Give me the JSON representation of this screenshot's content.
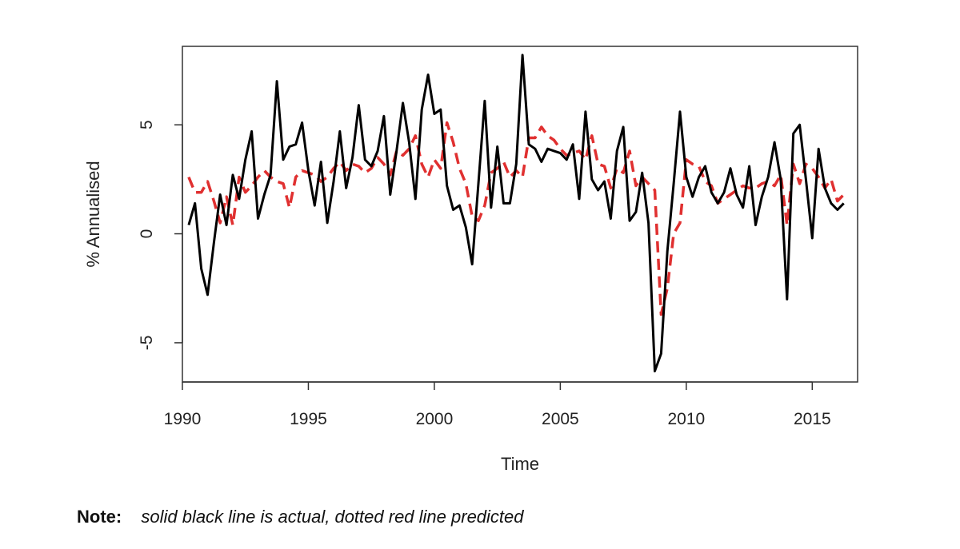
{
  "chart_data": {
    "type": "line",
    "title": "",
    "xlabel": "Time",
    "ylabel": "% Annualised",
    "xlim": [
      1990,
      2016.8
    ],
    "ylim": [
      -6.8,
      8.6
    ],
    "xticks": [
      1990,
      1995,
      2000,
      2005,
      2010,
      2015
    ],
    "yticks": [
      -5,
      0,
      5
    ],
    "grid": false,
    "series": [
      {
        "color": "#000000",
        "style": "solid",
        "x": [
          1990.25,
          1990.5,
          1990.75,
          1991,
          1991.25,
          1991.5,
          1991.75,
          1992,
          1992.25,
          1992.5,
          1992.75,
          1993,
          1993.25,
          1993.5,
          1993.75,
          1994,
          1994.25,
          1994.5,
          1994.75,
          1995,
          1995.25,
          1995.5,
          1995.75,
          1996,
          1996.25,
          1996.5,
          1996.75,
          1997,
          1997.25,
          1997.5,
          1997.75,
          1998,
          1998.25,
          1998.5,
          1998.75,
          1999,
          1999.25,
          1999.5,
          1999.75,
          2000,
          2000.25,
          2000.5,
          2000.75,
          2001,
          2001.25,
          2001.5,
          2001.75,
          2002,
          2002.25,
          2002.5,
          2002.75,
          2003,
          2003.25,
          2003.5,
          2003.75,
          2004,
          2004.25,
          2004.5,
          2004.75,
          2005,
          2005.25,
          2005.5,
          2005.75,
          2006,
          2006.25,
          2006.5,
          2006.75,
          2007,
          2007.25,
          2007.5,
          2007.75,
          2008,
          2008.25,
          2008.5,
          2008.75,
          2009,
          2009.25,
          2009.5,
          2009.75,
          2010,
          2010.25,
          2010.5,
          2010.75,
          2011,
          2011.25,
          2011.5,
          2011.75,
          2012,
          2012.25,
          2012.5,
          2012.75,
          2013,
          2013.25,
          2013.5,
          2013.75,
          2014,
          2014.25,
          2014.5,
          2014.75,
          2015,
          2015.25,
          2015.5,
          2015.75,
          2016,
          2016.25
        ],
        "values": [
          0.4,
          1.4,
          -1.6,
          -2.8,
          -0.4,
          1.8,
          0.4,
          2.7,
          1.6,
          3.4,
          4.7,
          0.7,
          1.8,
          2.7,
          7.0,
          3.4,
          4.0,
          4.1,
          5.1,
          2.9,
          1.3,
          3.3,
          0.5,
          2.4,
          4.7,
          2.1,
          3.5,
          5.9,
          3.4,
          3.1,
          3.8,
          5.4,
          1.8,
          3.8,
          6.0,
          4.2,
          1.6,
          5.7,
          7.3,
          5.5,
          5.7,
          2.2,
          1.1,
          1.3,
          0.3,
          -1.4,
          2.3,
          6.1,
          1.2,
          4.0,
          1.4,
          1.4,
          3.2,
          8.2,
          4.1,
          3.9,
          3.3,
          3.9,
          3.8,
          3.7,
          3.4,
          4.1,
          1.6,
          5.6,
          2.5,
          2.0,
          2.4,
          0.7,
          3.8,
          4.9,
          0.6,
          1.0,
          2.8,
          0.5,
          -6.3,
          -5.5,
          -0.8,
          2.3,
          5.6,
          2.6,
          1.7,
          2.6,
          3.1,
          1.9,
          1.4,
          1.9,
          3.0,
          1.8,
          1.2,
          3.1,
          0.4,
          1.7,
          2.6,
          4.2,
          2.5,
          -3.0,
          4.6,
          5.0,
          2.5,
          -0.2,
          3.9,
          2.1,
          1.4,
          1.1,
          1.4
        ]
      },
      {
        "color": "#e03030",
        "style": "dashed",
        "x": [
          1990.25,
          1990.5,
          1990.75,
          1991,
          1991.25,
          1991.5,
          1991.75,
          1992,
          1992.25,
          1992.5,
          1992.75,
          1993,
          1993.25,
          1993.5,
          1993.75,
          1994,
          1994.25,
          1994.5,
          1994.75,
          1995,
          1995.25,
          1995.5,
          1995.75,
          1996,
          1996.25,
          1996.5,
          1996.75,
          1997,
          1997.25,
          1997.5,
          1997.75,
          1998,
          1998.25,
          1998.5,
          1998.75,
          1999,
          1999.25,
          1999.5,
          1999.75,
          2000,
          2000.25,
          2000.5,
          2000.75,
          2001,
          2001.25,
          2001.5,
          2001.75,
          2002,
          2002.25,
          2002.5,
          2002.75,
          2003,
          2003.25,
          2003.5,
          2003.75,
          2004,
          2004.25,
          2004.5,
          2004.75,
          2005,
          2005.25,
          2005.5,
          2005.75,
          2006,
          2006.25,
          2006.5,
          2006.75,
          2007,
          2007.25,
          2007.5,
          2007.75,
          2008,
          2008.25,
          2008.5,
          2008.75,
          2009,
          2009.25,
          2009.5,
          2009.75,
          2010,
          2010.25,
          2010.5,
          2010.75,
          2011,
          2011.25,
          2011.5,
          2011.75,
          2012,
          2012.25,
          2012.5,
          2012.75,
          2013,
          2013.25,
          2013.5,
          2013.75,
          2014,
          2014.25,
          2014.5,
          2014.75,
          2015,
          2015.25,
          2015.5,
          2015.75,
          2016,
          2016.25
        ],
        "values": [
          2.6,
          1.9,
          1.9,
          2.4,
          1.5,
          0.5,
          1.7,
          0.4,
          2.6,
          1.9,
          2.2,
          2.6,
          2.9,
          2.6,
          2.4,
          2.3,
          1.2,
          2.6,
          2.9,
          2.8,
          2.7,
          2.4,
          2.6,
          3.0,
          3.3,
          2.9,
          3.2,
          3.1,
          2.8,
          3.0,
          3.5,
          3.2,
          2.7,
          3.8,
          3.6,
          3.9,
          4.5,
          3.2,
          2.6,
          3.4,
          3.0,
          5.1,
          4.2,
          3.0,
          2.3,
          0.8,
          0.6,
          1.3,
          2.8,
          3.0,
          3.3,
          2.6,
          2.9,
          2.6,
          4.4,
          4.4,
          4.9,
          4.5,
          4.3,
          3.9,
          3.6,
          3.7,
          3.8,
          3.4,
          4.5,
          3.2,
          3.1,
          2.1,
          3.0,
          2.8,
          3.8,
          2.2,
          2.6,
          2.3,
          2.0,
          -3.7,
          -2.5,
          0.0,
          0.5,
          3.4,
          3.2,
          3.1,
          2.4,
          2.2,
          1.4,
          1.6,
          1.8,
          2.0,
          2.2,
          2.1,
          2.1,
          2.3,
          2.4,
          2.2,
          2.7,
          0.4,
          3.2,
          2.3,
          3.2,
          3.0,
          2.6,
          2.1,
          2.5,
          1.5,
          1.8
        ]
      }
    ]
  },
  "note": {
    "label": "Note:",
    "text": "solid black line is actual, dotted red line predicted"
  }
}
